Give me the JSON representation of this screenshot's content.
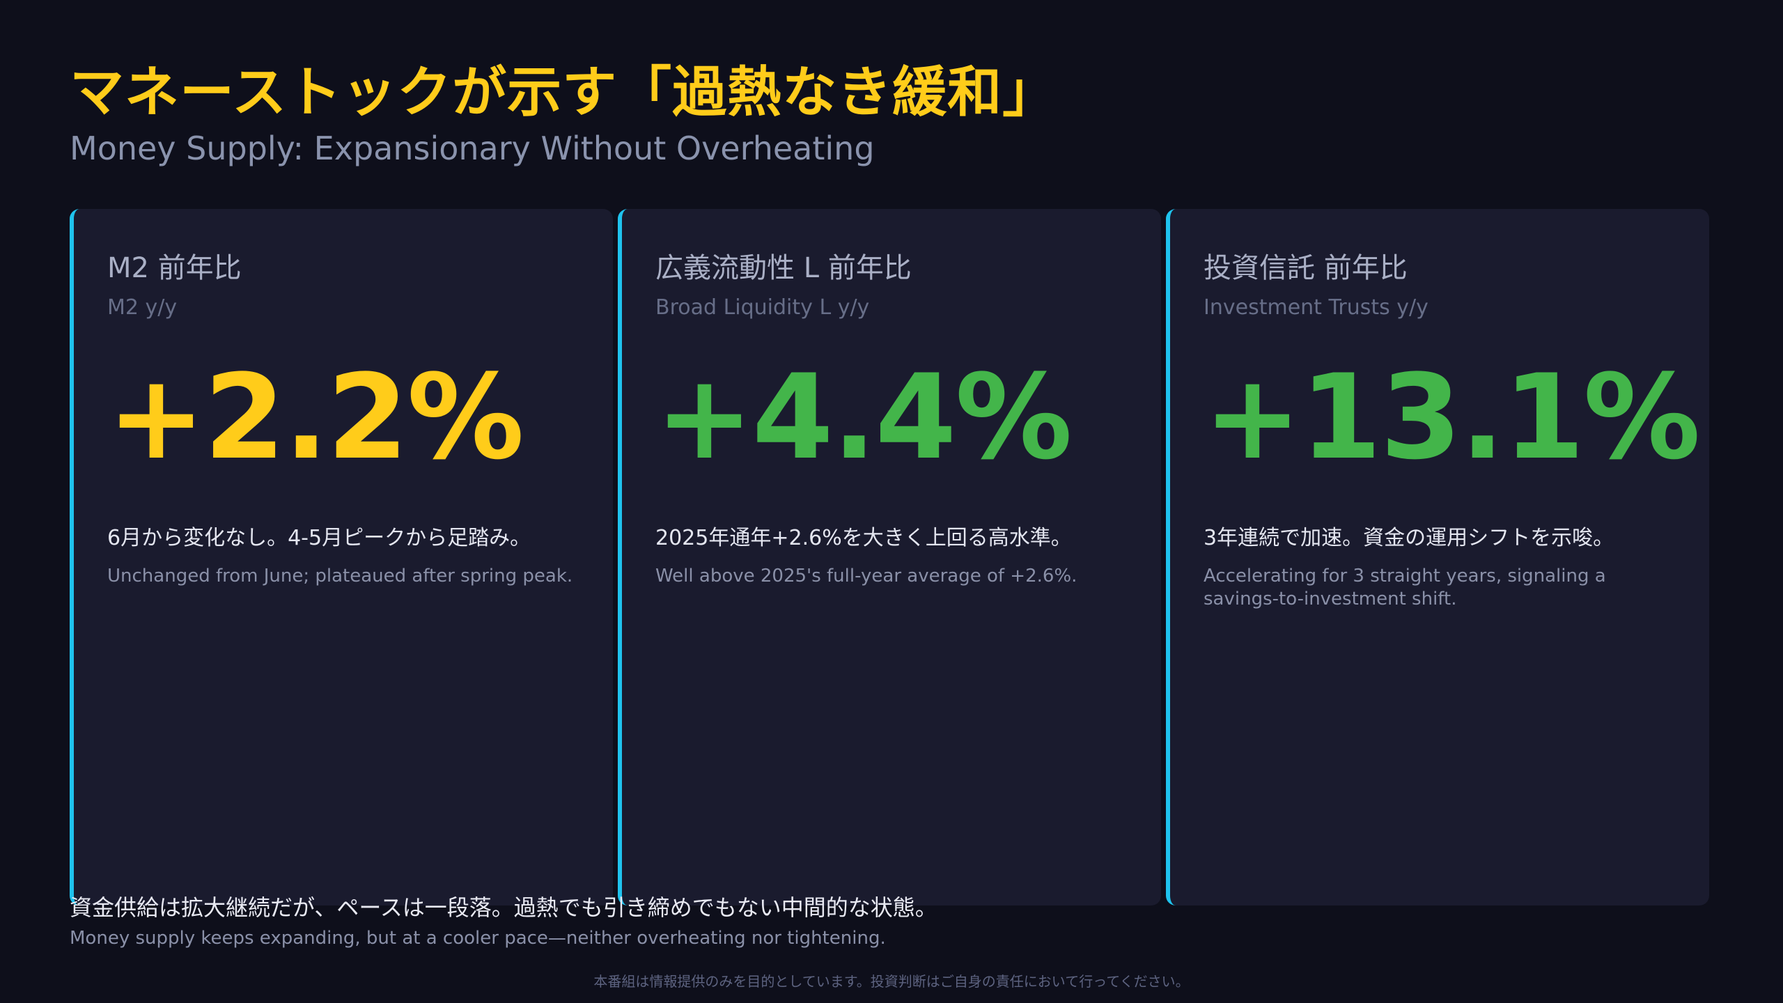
{
  "title": "マネーストックが示す「過熱なき緩和」",
  "subtitle": "Money Supply: Expansionary Without Overheating",
  "cards": [
    {
      "label": "M2 前年比",
      "label_en": "M2 y/y",
      "value": "+2.2%",
      "value_color": "#ffcc1a",
      "desc": "6月から変化なし。4-5月ピークから足踏み。",
      "desc_en": "Unchanged from June; plateaued after spring peak."
    },
    {
      "label": "広義流動性 L 前年比",
      "label_en": "Broad Liquidity L y/y",
      "value": "+4.4%",
      "value_color": "#43b54a",
      "desc": "2025年通年+2.6%を大きく上回る高水準。",
      "desc_en": "Well above 2025's full-year average of +2.6%."
    },
    {
      "label": "投資信託 前年比",
      "label_en": "Investment Trusts y/y",
      "value": "+13.1%",
      "value_color": "#43b54a",
      "desc": "3年連続で加速。資金の運用シフトを示唆。",
      "desc_en": "Accelerating for 3 straight years, signaling a savings-to-investment shift."
    }
  ],
  "summary": "資金供給は拡大継続だが、ペースは一段落。過熱でも引き締めでもない中間的な状態。",
  "summary_en": "Money supply keeps expanding, but at a cooler pace—neither overheating nor tightening.",
  "disclaimer": "本番組は情報提供のみを目的としています。投資判断はご自身の責任において行ってください。",
  "colors": {
    "accent_border": "#1fc3ee",
    "title": "#ffcc1a",
    "background": "#0e0f1b",
    "card_background": "#1a1b2e"
  }
}
